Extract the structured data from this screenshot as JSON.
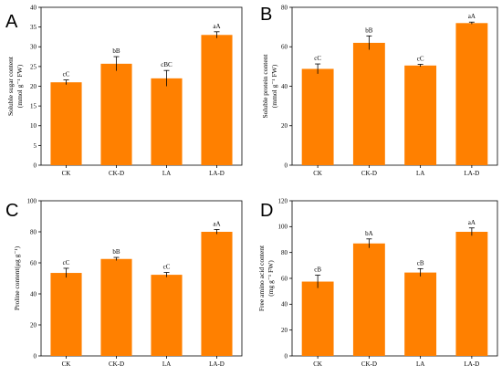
{
  "colors": {
    "bar": "#ff8000",
    "axis": "#000000",
    "errorbar": "#000000"
  },
  "chart_data": [
    {
      "type": "bar",
      "panel_label": "A",
      "categories": [
        "CK",
        "CK-D",
        "LA",
        "LA-D"
      ],
      "values": [
        21.0,
        25.7,
        22.0,
        33.0
      ],
      "errors": [
        0.6,
        1.8,
        2.0,
        0.8
      ],
      "significance": [
        "cC",
        "bB",
        "cBC",
        "aA"
      ],
      "ylabel_lines": [
        "Soluble sugar content",
        "(mmol g⁻¹ FW)"
      ],
      "ylim": [
        0,
        40
      ],
      "yticks": [
        0,
        5,
        10,
        15,
        20,
        25,
        30,
        35,
        40
      ]
    },
    {
      "type": "bar",
      "panel_label": "B",
      "categories": [
        "CK",
        "CK-D",
        "LA",
        "LA-D"
      ],
      "values": [
        48.8,
        62.0,
        50.5,
        72.0
      ],
      "errors": [
        2.5,
        3.5,
        0.6,
        0.5
      ],
      "significance": [
        "cC",
        "bB",
        "cC",
        "aA"
      ],
      "ylabel_lines": [
        "Soluble protein content",
        "(mmol g⁻¹ FW)"
      ],
      "ylim": [
        0,
        80
      ],
      "yticks": [
        0,
        20,
        40,
        60,
        80
      ]
    },
    {
      "type": "bar",
      "panel_label": "C",
      "categories": [
        "CK",
        "CK-D",
        "LA",
        "LA-D"
      ],
      "values": [
        53.5,
        62.5,
        52.3,
        80.0
      ],
      "errors": [
        3.0,
        1.0,
        1.5,
        1.5
      ],
      "significance": [
        "cC",
        "bB",
        "cC",
        "aA"
      ],
      "ylabel_lines": [
        "Proline content(μg g⁻¹)"
      ],
      "ylim": [
        0,
        100
      ],
      "yticks": [
        0,
        20,
        40,
        60,
        80,
        100
      ]
    },
    {
      "type": "bar",
      "panel_label": "D",
      "categories": [
        "CK",
        "CK-D",
        "LA",
        "LA-D"
      ],
      "values": [
        57.5,
        87.0,
        64.5,
        96.0
      ],
      "errors": [
        5.0,
        3.5,
        3.0,
        3.0
      ],
      "significance": [
        "cB",
        "bA",
        "cB",
        "aA"
      ],
      "ylabel_lines": [
        "Free amino acid content",
        "(mg g⁻¹ FW)"
      ],
      "ylim": [
        0,
        120
      ],
      "yticks": [
        0,
        20,
        40,
        60,
        80,
        100,
        120
      ]
    }
  ]
}
